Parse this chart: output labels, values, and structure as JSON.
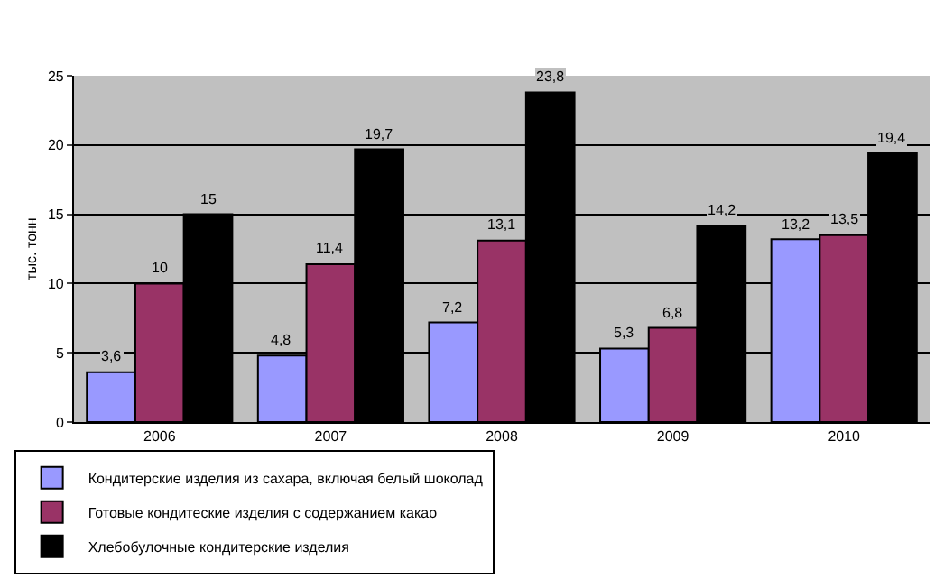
{
  "chart_data": {
    "type": "bar",
    "ylabel": "тыс. тонн",
    "categories": [
      "2006",
      "2007",
      "2008",
      "2009",
      "2010"
    ],
    "series": [
      {
        "name": "Кондитерские изделия из сахара, включая белый шоколад",
        "color": "#9999ff",
        "values": [
          3.6,
          4.8,
          7.2,
          5.3,
          13.2
        ],
        "value_labels": [
          "3,6",
          "4,8",
          "7,2",
          "5,3",
          "13,2"
        ]
      },
      {
        "name": "Готовые кондитеские изделия с содержанием какао",
        "color": "#993366",
        "values": [
          10,
          11.4,
          13.1,
          6.8,
          13.5
        ],
        "value_labels": [
          "10",
          "11,4",
          "13,1",
          "6,8",
          "13,5"
        ]
      },
      {
        "name": "Хлебобулочные кондитерские изделия",
        "color": "#000000",
        "values": [
          15,
          19.7,
          23.8,
          14.2,
          19.4
        ],
        "value_labels": [
          "15",
          "19,7",
          "23,8",
          "14,2",
          "19,4"
        ]
      }
    ],
    "ylim": [
      0,
      25
    ],
    "yticks": [
      0,
      5,
      10,
      15,
      20,
      25
    ],
    "grid": "y",
    "legend": "bottom"
  }
}
